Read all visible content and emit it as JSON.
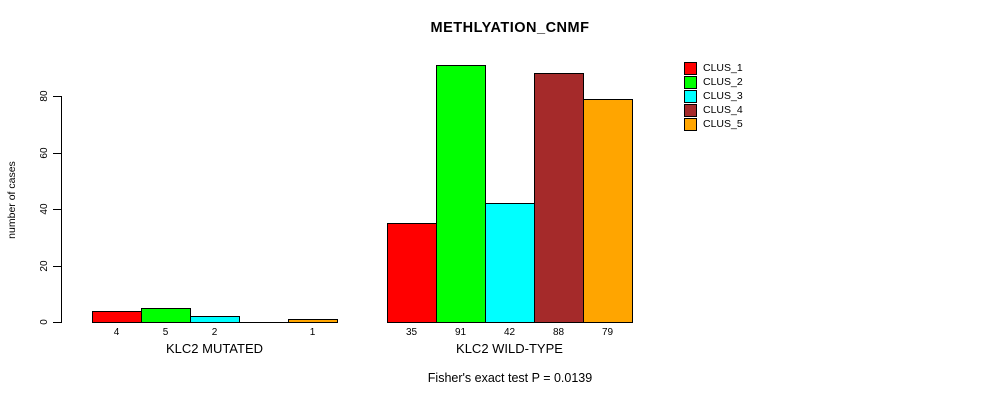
{
  "chart_data": {
    "type": "bar",
    "title": "METHLYATION_CNMF",
    "subtitle": "Fisher's exact test P = 0.0139",
    "ylabel": "number of cases",
    "xlabel": "",
    "yticks": [
      0,
      20,
      40,
      60,
      80
    ],
    "ylim": [
      0,
      91
    ],
    "grid": false,
    "legend_position": "right",
    "groups": [
      {
        "label": "KLC2 MUTATED",
        "values": [
          4,
          5,
          2,
          0,
          1
        ],
        "value_labels": [
          "4",
          "5",
          "2",
          "",
          "1"
        ]
      },
      {
        "label": "KLC2 WILD-TYPE",
        "values": [
          35,
          91,
          42,
          88,
          79
        ],
        "value_labels": [
          "35",
          "91",
          "42",
          "88",
          "79"
        ]
      }
    ],
    "series": [
      {
        "name": "CLUS_1",
        "color": "#FF0000"
      },
      {
        "name": "CLUS_2",
        "color": "#00FF00"
      },
      {
        "name": "CLUS_3",
        "color": "#00FFFF"
      },
      {
        "name": "CLUS_4",
        "color": "#A52A2A"
      },
      {
        "name": "CLUS_5",
        "color": "#FFA500"
      }
    ]
  }
}
